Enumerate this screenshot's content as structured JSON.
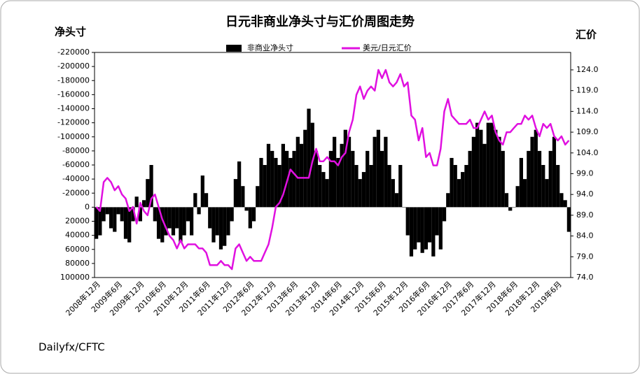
{
  "chart_data": {
    "type": "bar",
    "title": "日元非商业净头寸与汇价周图走势",
    "y_label": "净头寸",
    "y2_label": "汇价",
    "source": "Dailyfx/CFTC",
    "categories": [
      "2008年12月",
      null,
      null,
      null,
      null,
      null,
      "2009年6月",
      null,
      null,
      null,
      null,
      null,
      "2009年12月",
      null,
      null,
      null,
      null,
      null,
      "2010年6月",
      null,
      null,
      null,
      null,
      null,
      "2010年12月",
      null,
      null,
      null,
      null,
      null,
      "2011年6月",
      null,
      null,
      null,
      null,
      null,
      "2011年12月",
      null,
      null,
      null,
      null,
      null,
      "2012年6月",
      null,
      null,
      null,
      null,
      null,
      "2012年12月",
      null,
      null,
      null,
      null,
      null,
      "2013年6月",
      null,
      null,
      null,
      null,
      null,
      "2013年12月",
      null,
      null,
      null,
      null,
      null,
      "2014年6月",
      null,
      null,
      null,
      null,
      null,
      "2014年12月",
      null,
      null,
      null,
      null,
      null,
      "2015年6月",
      null,
      null,
      null,
      null,
      null,
      "2015年12月",
      null,
      null,
      null,
      null,
      null,
      "2016年6月",
      null,
      null,
      null,
      null,
      null,
      "2016年12月",
      null,
      null,
      null,
      null,
      null,
      "2017年6月",
      null,
      null,
      null,
      null,
      null,
      "2017年12月",
      null,
      null,
      null,
      null,
      null,
      "2018年6月",
      null,
      null,
      null,
      null,
      null,
      "2018年12月",
      null,
      null,
      null,
      null,
      null,
      "2019年6月",
      null,
      null,
      null
    ],
    "series": [
      {
        "name": "非商业净头寸",
        "type": "bar",
        "color": "#000000",
        "values": [
          45000,
          40000,
          20000,
          10000,
          30000,
          35000,
          10000,
          20000,
          45000,
          50000,
          20000,
          -15000,
          20000,
          -10000,
          -40000,
          -60000,
          20000,
          45000,
          50000,
          40000,
          30000,
          40000,
          30000,
          50000,
          40000,
          20000,
          40000,
          -20000,
          10000,
          -45000,
          -20000,
          30000,
          50000,
          40000,
          60000,
          55000,
          40000,
          20000,
          -40000,
          -65000,
          -30000,
          5000,
          30000,
          20000,
          -30000,
          -70000,
          -60000,
          -90000,
          -80000,
          -70000,
          -60000,
          -90000,
          -80000,
          -70000,
          -80000,
          -100000,
          -90000,
          -110000,
          -140000,
          -120000,
          -80000,
          -60000,
          -50000,
          -40000,
          -80000,
          -100000,
          -70000,
          -90000,
          -110000,
          -100000,
          -80000,
          -60000,
          -40000,
          -50000,
          -80000,
          -60000,
          -100000,
          -110000,
          -80000,
          -100000,
          -60000,
          -40000,
          -20000,
          -60000,
          0,
          40000,
          70000,
          60000,
          50000,
          65000,
          60000,
          50000,
          70000,
          40000,
          60000,
          20000,
          -20000,
          -70000,
          -60000,
          -40000,
          -50000,
          -60000,
          -80000,
          -100000,
          -120000,
          -110000,
          -90000,
          -120000,
          -120000,
          -110000,
          -100000,
          -80000,
          -20000,
          5000,
          0,
          -30000,
          -70000,
          -40000,
          -80000,
          -100000,
          -110000,
          -80000,
          -60000,
          -40000,
          -80000,
          -100000,
          -60000,
          -20000,
          -10000,
          35000
        ]
      },
      {
        "name": "美元/日元汇价",
        "type": "line",
        "axis": "y2",
        "color": "#e010e0",
        "values": [
          91,
          90,
          97,
          98,
          97,
          95,
          96,
          94,
          93,
          90,
          91,
          87,
          92,
          90,
          89,
          93,
          94,
          91,
          88,
          86,
          84,
          83,
          81,
          83,
          81,
          82,
          82,
          82,
          81,
          81,
          80,
          77,
          77,
          77,
          78,
          77,
          77,
          76,
          81,
          82,
          80,
          78,
          79,
          78,
          78,
          78,
          80,
          82,
          86,
          91,
          92,
          94,
          97,
          100,
          99,
          98,
          98,
          98,
          98,
          102,
          105,
          102,
          102,
          103,
          102,
          102,
          101,
          103,
          104,
          109,
          112,
          118,
          120,
          117,
          119,
          120,
          119,
          124,
          122,
          124,
          121,
          120,
          121,
          123,
          120,
          121,
          113,
          112,
          107,
          110,
          103,
          104,
          101,
          101,
          105,
          114,
          117,
          113,
          112,
          111,
          111,
          111,
          112,
          110,
          110,
          112,
          114,
          112,
          113,
          109,
          107,
          106,
          109,
          109,
          110,
          111,
          111,
          113,
          112,
          113,
          110,
          108,
          111,
          110,
          111,
          108,
          107,
          108,
          106,
          107
        ]
      }
    ],
    "ylim": [
      -220000,
      100000
    ],
    "y_inverted": true,
    "yticks": [
      -220000,
      -200000,
      -180000,
      -160000,
      -140000,
      -120000,
      -100000,
      -80000,
      -60000,
      -40000,
      -20000,
      0,
      20000,
      40000,
      60000,
      80000,
      100000
    ],
    "y2lim": [
      74,
      128.2
    ],
    "y2ticks": [
      {
        "value": 74,
        "label": "74.0"
      },
      {
        "value": 79,
        "label": "79.0"
      },
      {
        "value": 84,
        "label": "84.0"
      },
      {
        "value": 89,
        "label": "89.0"
      },
      {
        "value": 94,
        "label": "94.0"
      },
      {
        "value": 99,
        "label": "99.0"
      },
      {
        "value": 104,
        "label": "104.0"
      },
      {
        "value": 109,
        "label": "109.0"
      },
      {
        "value": 114,
        "label": "114.0"
      },
      {
        "value": 119,
        "label": "119.0"
      },
      {
        "value": 124,
        "label": "124.0"
      }
    ]
  }
}
